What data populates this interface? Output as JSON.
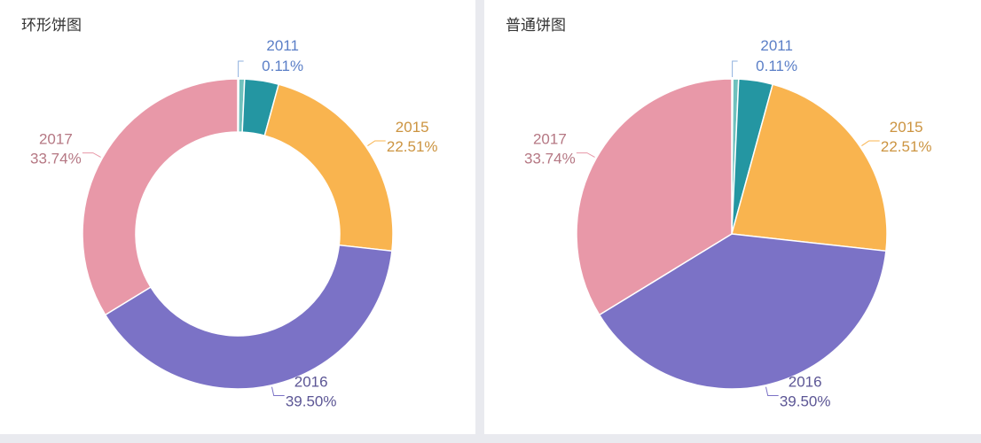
{
  "panels": [
    {
      "title": "环形饼图"
    },
    {
      "title": "普通饼图"
    }
  ],
  "chart_data": [
    {
      "type": "pie",
      "variant": "donut",
      "title": "环形饼图",
      "slices": [
        {
          "label": "2011",
          "value": 0.11,
          "pct_label": "0.11%",
          "color": "#6fc1bd",
          "show_label": true
        },
        {
          "label": "",
          "value": 0.6,
          "pct_label": "",
          "color": "#6fc1bd",
          "show_label": false
        },
        {
          "label": "",
          "value": 3.54,
          "pct_label": "",
          "color": "#2496a2",
          "show_label": false
        },
        {
          "label": "2015",
          "value": 22.51,
          "pct_label": "22.51%",
          "color": "#f9b44f",
          "show_label": true
        },
        {
          "label": "2016",
          "value": 39.5,
          "pct_label": "39.50%",
          "color": "#7b72c6",
          "show_label": true
        },
        {
          "label": "2017",
          "value": 33.74,
          "pct_label": "33.74%",
          "color": "#e898a8",
          "show_label": true
        }
      ]
    },
    {
      "type": "pie",
      "variant": "pie",
      "title": "普通饼图",
      "slices": [
        {
          "label": "2011",
          "value": 0.11,
          "pct_label": "0.11%",
          "color": "#6fc1bd",
          "show_label": true
        },
        {
          "label": "",
          "value": 0.6,
          "pct_label": "",
          "color": "#6fc1bd",
          "show_label": false
        },
        {
          "label": "",
          "value": 3.54,
          "pct_label": "",
          "color": "#2496a2",
          "show_label": false
        },
        {
          "label": "2015",
          "value": 22.51,
          "pct_label": "22.51%",
          "color": "#f9b44f",
          "show_label": true
        },
        {
          "label": "2016",
          "value": 39.5,
          "pct_label": "39.50%",
          "color": "#7b72c6",
          "show_label": true
        },
        {
          "label": "2017",
          "value": 33.74,
          "pct_label": "33.74%",
          "color": "#e898a8",
          "show_label": true
        }
      ]
    }
  ]
}
